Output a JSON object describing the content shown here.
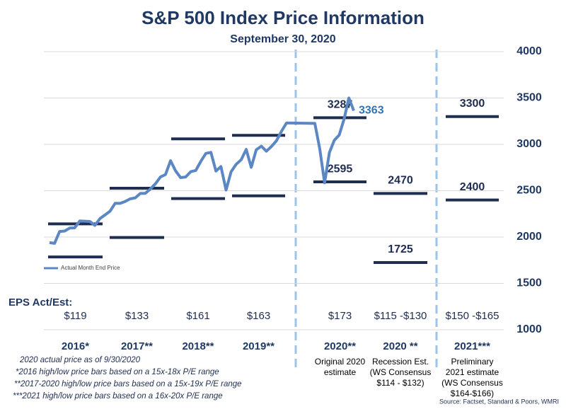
{
  "chart_data": {
    "type": "line",
    "title": "S&P 500 Index Price Information",
    "subtitle": "September 30, 2020",
    "ylim": [
      1000,
      4000
    ],
    "yticks": [
      1000,
      1500,
      2000,
      2500,
      3000,
      3500,
      4000
    ],
    "grid": true,
    "series": [
      {
        "name": "Actual Month End Price",
        "color": "#5b87c5",
        "values": [
          1940,
          1932,
          2060,
          2065,
          2097,
          2099,
          2174,
          2171,
          2168,
          2126,
          2199,
          2239,
          2279,
          2364,
          2363,
          2384,
          2412,
          2423,
          2470,
          2472,
          2519,
          2575,
          2648,
          2674,
          2824,
          2714,
          2641,
          2648,
          2705,
          2718,
          2816,
          2902,
          2914,
          2712,
          2760,
          2507,
          2704,
          2784,
          2834,
          2946,
          2752,
          2942,
          2980,
          2926,
          2977,
          3038,
          3141,
          3231,
          3226,
          2954,
          2585,
          2912,
          3044,
          3100,
          3271,
          3500,
          3363
        ]
      }
    ],
    "eps_label": "EPS Act/Est:",
    "bar_color": "#1f2d50",
    "history_columns": [
      {
        "category": "2016*",
        "eps": "$119",
        "low": 1785,
        "high": 2142
      },
      {
        "category": "2017**",
        "eps": "$133",
        "low": 1995,
        "high": 2527
      },
      {
        "category": "2018**",
        "eps": "$161",
        "low": 2415,
        "high": 3059
      },
      {
        "category": "2019**",
        "eps": "$163",
        "low": 2445,
        "high": 3097
      }
    ],
    "estimate_columns": [
      {
        "category": "2020**",
        "eps": "$173",
        "low": 2595,
        "high": 3287,
        "note": [
          "Original 2020",
          "estimate"
        ]
      },
      {
        "category": "2020 **",
        "eps": "$115 -$130",
        "low": 1725,
        "high": 2470,
        "note": [
          "Recession Est.",
          "(WS Consensus",
          "$114 - $132)"
        ]
      },
      {
        "category": "2021***",
        "eps": "$150 -$165",
        "low": 2400,
        "high": 3300,
        "note": [
          "Preliminary",
          "2021 estimate",
          "(WS Consensus",
          "$164-$166)"
        ]
      }
    ],
    "footnotes": [
      "2020 actual price as of 9/30/2020",
      "*2016 high/low price bars based on a 15x-18x P/E range",
      "**2017-2020 high/low price bars based on a 15x-19x P/E range",
      "***2021 high/low price bars based on a 16x-20x P/E range"
    ],
    "source": "Source: Factset, Standard & Poors, WMRI"
  }
}
